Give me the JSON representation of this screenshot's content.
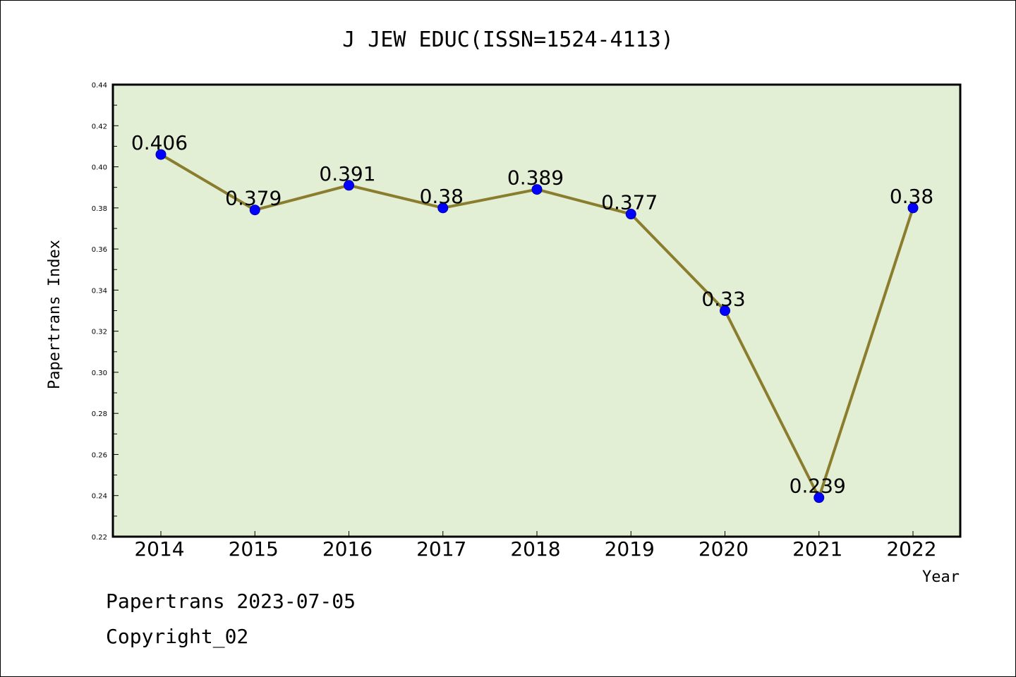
{
  "chart_data": {
    "type": "line",
    "title": "J JEW EDUC(ISSN=1524-4113)",
    "xlabel": "Year",
    "ylabel": "Papertrans Index",
    "categories": [
      "2014",
      "2015",
      "2016",
      "2017",
      "2018",
      "2019",
      "2020",
      "2021",
      "2022"
    ],
    "series": [
      {
        "values": [
          0.406,
          0.379,
          0.391,
          0.38,
          0.389,
          0.377,
          0.33,
          0.239,
          0.38
        ],
        "data_labels": [
          "0.406",
          "0.379",
          "0.391",
          "0.38",
          "0.389",
          "0.377",
          "0.33",
          "0.239",
          "0.38"
        ]
      }
    ],
    "ylim": [
      0.22,
      0.44
    ],
    "yticks": [
      "0.22",
      "0.24",
      "0.26",
      "0.28",
      "0.30",
      "0.32",
      "0.34",
      "0.36",
      "0.38",
      "0.40",
      "0.42",
      "0.44"
    ],
    "grid": false,
    "colors": {
      "plot_background": "#e2efd4",
      "line": "#8b7d2e",
      "marker": "#0000ff"
    }
  },
  "footer": {
    "date_line": "Papertrans 2023-07-05",
    "copyright_line": "Copyright_02"
  }
}
